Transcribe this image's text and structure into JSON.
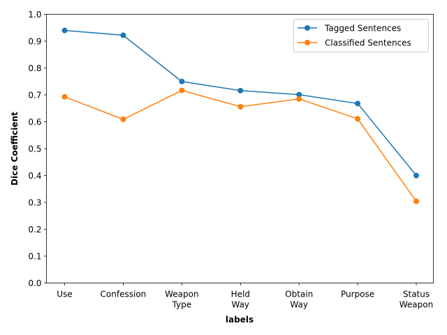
{
  "chart_data": {
    "type": "line",
    "categories": [
      [
        "Use"
      ],
      [
        "Confession"
      ],
      [
        "Weapon",
        "Type"
      ],
      [
        "Held",
        "Way"
      ],
      [
        "Obtain",
        "Way"
      ],
      [
        "Purpose"
      ],
      [
        "Status",
        "Weapon"
      ]
    ],
    "series": [
      {
        "name": "Tagged Sentences",
        "color": "#1f77b4",
        "values": [
          0.94,
          0.922,
          0.75,
          0.716,
          0.701,
          0.668,
          0.4
        ]
      },
      {
        "name": "Classified Sentences",
        "color": "#ff7f0e",
        "values": [
          0.693,
          0.609,
          0.717,
          0.656,
          0.685,
          0.611,
          0.304
        ]
      }
    ],
    "xlabel": "labels",
    "ylabel": "Dice Coefficient",
    "ylim": [
      0.0,
      1.0
    ],
    "yticks": [
      "0.0",
      "0.1",
      "0.2",
      "0.3",
      "0.4",
      "0.5",
      "0.6",
      "0.7",
      "0.8",
      "0.9",
      "1.0"
    ],
    "grid": false,
    "legend_position": "top-right"
  }
}
